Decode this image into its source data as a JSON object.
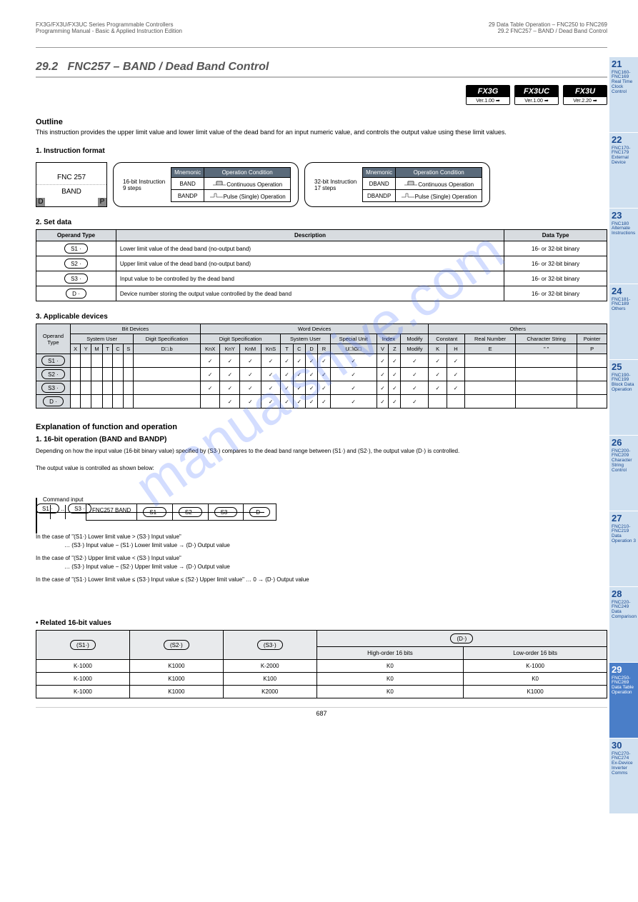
{
  "watermark": "manualshive.com",
  "header": {
    "left_line1": "FX3G/FX3U/FX3UC Series Programmable Controllers",
    "left_line2": "Programming Manual - Basic & Applied Instruction Edition",
    "right_line1": "29 Data Table Operation – FNC250 to FNC269",
    "right_line2": "29.2 FNC257 – BAND / Dead Band Control"
  },
  "section": {
    "number": "29.2",
    "title": "FNC257 – BAND / Dead Band Control"
  },
  "badges": [
    {
      "top": "FX3G",
      "bot": "Ver.1.00 ➡"
    },
    {
      "top": "FX3UC",
      "bot": "Ver.1.00 ➡"
    },
    {
      "top": "FX3U",
      "bot": "Ver.2.20 ➡"
    }
  ],
  "outline": {
    "heading": "Outline",
    "text": "This instruction provides the upper limit value and lower limit value of the dead band for an input numeric value, and controls the output value using these limit values."
  },
  "fnc_box": {
    "no": "FNC 257",
    "name": "BAND",
    "d_mark": "D",
    "p_mark": "P"
  },
  "instruction_format_heading": "1. Instruction format",
  "mnemo16": {
    "title": "16-bit Instruction",
    "steps": "9 steps",
    "col_m": "Mnemonic",
    "col_c": "Operation Condition",
    "rows": [
      {
        "m": "BAND",
        "c": "Continuous Operation"
      },
      {
        "m": "BANDP",
        "c": "Pulse (Single) Operation"
      }
    ]
  },
  "mnemo32": {
    "title": "32-bit Instruction",
    "steps": "17 steps",
    "col_m": "Mnemonic",
    "col_c": "Operation Condition",
    "rows": [
      {
        "m": "DBAND",
        "c": "Continuous Operation"
      },
      {
        "m": "DBANDP",
        "c": "Pulse (Single) Operation"
      }
    ]
  },
  "operands": {
    "heading": "2. Set data",
    "cols": [
      "Operand Type",
      "Description",
      "Data Type"
    ],
    "rows": [
      {
        "op": "S1 ·",
        "desc": "Lower limit value of the dead band (no-output band)",
        "dt": "16- or 32-bit binary"
      },
      {
        "op": "S2 ·",
        "desc": "Upper limit value of the dead band (no-output band)",
        "dt": "16- or 32-bit binary"
      },
      {
        "op": "S3 ·",
        "desc": "Input value to be controlled by the dead band",
        "dt": "16- or 32-bit binary"
      },
      {
        "op": "D ·",
        "desc": "Device number storing the output value controlled by the dead band",
        "dt": "16- or 32-bit binary"
      }
    ]
  },
  "devtab": {
    "heading": "3. Applicable devices",
    "group_headers": [
      "Bit Devices",
      "Word Devices",
      "Others"
    ],
    "sub1": [
      "System User",
      "Digit Specification",
      "System User",
      "Special Unit",
      "Index",
      "Constant",
      "Real Number",
      "Character String",
      "Pointer"
    ],
    "cols": [
      "X",
      "Y",
      "M",
      "T",
      "C",
      "S",
      "D□.b",
      "KnX",
      "KnY",
      "KnM",
      "KnS",
      "T",
      "C",
      "D",
      "R",
      "U□\\G□",
      "V",
      "Z",
      "Modify",
      "K",
      "H",
      "E",
      "\" \"",
      "P"
    ],
    "rows": [
      {
        "op": "S1 ·",
        "v": [
          "",
          "",
          "",
          "",
          "",
          "",
          "",
          "✓",
          "✓",
          "✓",
          "✓",
          "✓",
          "✓",
          "✓",
          "✓",
          "✓",
          "✓",
          "✓",
          "✓",
          "✓",
          "✓",
          "",
          "",
          ""
        ]
      },
      {
        "op": "S2 ·",
        "v": [
          "",
          "",
          "",
          "",
          "",
          "",
          "",
          "✓",
          "✓",
          "✓",
          "✓",
          "✓",
          "✓",
          "✓",
          "✓",
          "✓",
          "✓",
          "✓",
          "✓",
          "✓",
          "✓",
          "",
          "",
          ""
        ]
      },
      {
        "op": "S3 ·",
        "v": [
          "",
          "",
          "",
          "",
          "",
          "",
          "",
          "✓",
          "✓",
          "✓",
          "✓",
          "✓",
          "✓",
          "✓",
          "✓",
          "✓",
          "✓",
          "✓",
          "✓",
          "✓",
          "✓",
          "",
          "",
          ""
        ]
      },
      {
        "op": "D ·",
        "v": [
          "",
          "",
          "",
          "",
          "",
          "",
          "",
          "",
          "✓",
          "✓",
          "✓",
          "✓",
          "✓",
          "✓",
          "✓",
          "✓",
          "✓",
          "✓",
          "✓",
          "",
          "",
          "",
          "",
          ""
        ]
      }
    ]
  },
  "function": {
    "heading": "Explanation of function and operation",
    "sub": "1. 16-bit operation (BAND and BANDP)",
    "desc_line1": "Depending on how the input value (16-bit binary value) specified by (S3·) compares to the dead band range between (S1·) and (S2·), the output value (D·) is controlled.",
    "desc_line2": "The output value is controlled as shown below:",
    "cmd_label": "Command input",
    "inst_name": "FNC257 BAND",
    "ops": [
      "S1 ·",
      "S2 ·",
      "S3 ·",
      "D ·"
    ],
    "cond1_a": "In the case of \"(S1·) Lower limit value > (S3·) Input value\"",
    "cond1_b": "… (S3·) Input value − (S1·) Lower limit value → (D·) Output value",
    "cond2_a": "In the case of \"(S2·) Upper limit value < (S3·) Input value\"",
    "cond2_b": "… (S3·) Input value − (S2·) Upper limit value → (D·) Output value",
    "cond3_a": "In the case of \"(S1·) Lower limit value ≤ (S3·) Input value ≤ (S2·) Upper limit value\" … 0 → (D·) Output value"
  },
  "reltab": {
    "heading": "• Related 16-bit values",
    "head": [
      "(S1·)",
      "(S2·)",
      "(S3·)",
      "High-order 16 bits",
      "Low-order 16 bits"
    ],
    "sub_head_right": "(D·)",
    "rows": [
      [
        "K-1000",
        "K1000",
        "K-2000",
        "K0",
        "K-1000"
      ],
      [
        "K-1000",
        "K1000",
        "K100",
        "K0",
        "K0"
      ],
      [
        "K-1000",
        "K1000",
        "K2000",
        "K0",
        "K1000"
      ]
    ]
  },
  "footer": "687",
  "tabs": [
    {
      "num": "21",
      "txt": "FNC160-FNC169 Real Time Clock Control"
    },
    {
      "num": "22",
      "txt": "FNC170-FNC179 External Device"
    },
    {
      "num": "23",
      "txt": "FNC180 Alternate Instructions"
    },
    {
      "num": "24",
      "txt": "FNC181-FNC189 Others"
    },
    {
      "num": "25",
      "txt": "FNC190-FNC199 Block Data Operation"
    },
    {
      "num": "26",
      "txt": "FNC200-FNC209 Character String Control"
    },
    {
      "num": "27",
      "txt": "FNC210-FNC219 Data Operation 3"
    },
    {
      "num": "28",
      "txt": "FNC220-FNC249 Data Comparison"
    },
    {
      "num": "29",
      "txt": "FNC250-FNC269 Data Table Operation",
      "active": true
    },
    {
      "num": "30",
      "txt": "FNC270-FNC274 Ex-Device Inverter Comms"
    }
  ]
}
